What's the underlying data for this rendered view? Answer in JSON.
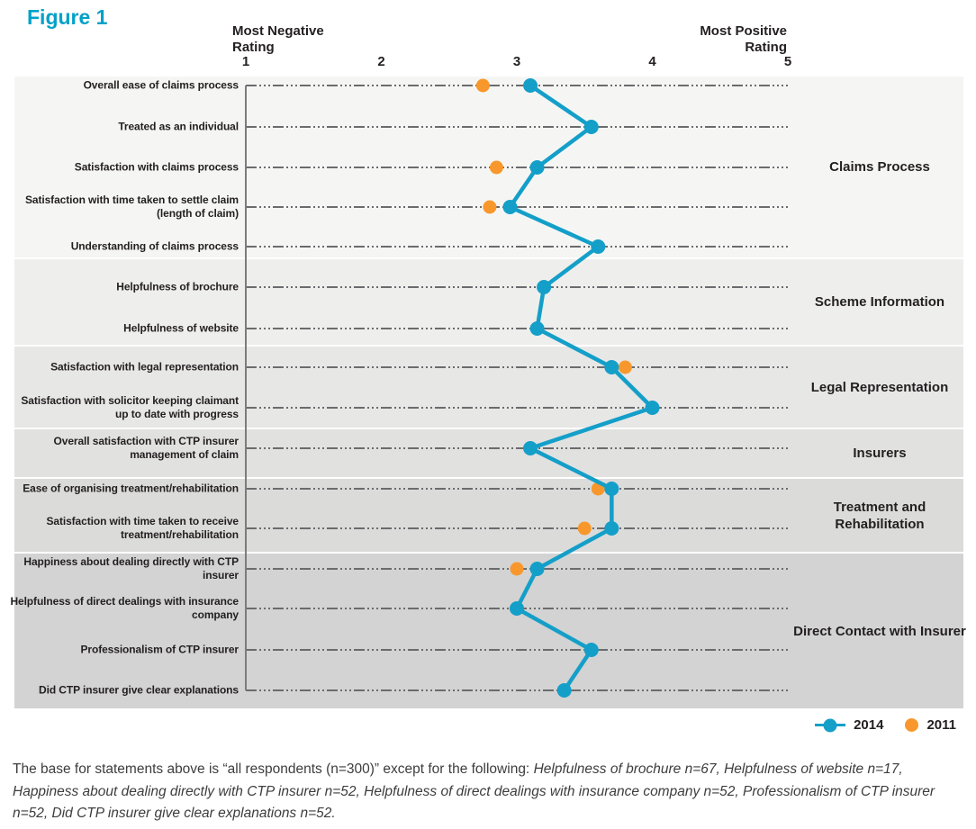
{
  "title": "Figure 1",
  "axis": {
    "left_header": "Most Negative\nRating",
    "right_header": "Most Positive\nRating",
    "ticks": [
      "1",
      "2",
      "3",
      "4",
      "5"
    ]
  },
  "legend": {
    "series": [
      {
        "name": "2014"
      },
      {
        "name": "2011"
      }
    ]
  },
  "colors": {
    "title": "#00a1c9",
    "series_2014": "#149fc9",
    "series_2011": "#f8982c",
    "row_line": "#6a6b6d",
    "axis_line": "#7b7c7e",
    "band_shades": [
      "#f5f6f4",
      "#eeeeec",
      "#e7e7e6",
      "#e1e1e0",
      "#dbdbda",
      "#d2d3d2"
    ]
  },
  "footnote": {
    "regular": "The base for statements above is “all respondents (n=300)” except for the following: ",
    "italic": "Helpfulness of brochure n=67, Helpfulness of website n=17, Happiness about dealing directly with CTP insurer n=52, Helpfulness of direct dealings with insurance company n=52, Professionalism of CTP insurer n=52, Did CTP insurer give clear explanations n=52."
  },
  "chart_data": {
    "type": "scatter",
    "x_range": [
      1,
      5
    ],
    "x_ticks": [
      1,
      2,
      3,
      4,
      5
    ],
    "series_names": [
      "2014",
      "2011"
    ],
    "xlabel_left": "Most Negative Rating",
    "xlabel_right": "Most Positive Rating",
    "groups": [
      {
        "label": "Claims Process",
        "rows": [
          {
            "label": "Overall ease of claims process",
            "v2014": 3.1,
            "v2011": 2.75
          },
          {
            "label": "Treated as an individual",
            "v2014": 3.55,
            "v2011": null
          },
          {
            "label": "Satisfaction with claims process",
            "v2014": 3.15,
            "v2011": 2.85
          },
          {
            "label": "Satisfaction with time taken to settle claim (length of claim)",
            "v2014": 2.95,
            "v2011": 2.8
          },
          {
            "label": "Understanding of claims process",
            "v2014": 3.6,
            "v2011": null
          }
        ]
      },
      {
        "label": "Scheme Information",
        "rows": [
          {
            "label": "Helpfulness of brochure",
            "v2014": 3.2,
            "v2011": null
          },
          {
            "label": "Helpfulness of website",
            "v2014": 3.15,
            "v2011": null
          }
        ]
      },
      {
        "label": "Legal Representation",
        "rows": [
          {
            "label": "Satisfaction with legal representation",
            "v2014": 3.7,
            "v2011": 3.8
          },
          {
            "label": "Satisfaction with solicitor keeping claimant up to date with progress",
            "v2014": 4.0,
            "v2011": null
          }
        ]
      },
      {
        "label": "Insurers",
        "rows": [
          {
            "label": "Overall satisfaction with CTP insurer management of claim",
            "v2014": 3.1,
            "v2011": null
          }
        ]
      },
      {
        "label": "Treatment and Rehabilitation",
        "rows": [
          {
            "label": "Ease of organising treatment/rehabilitation",
            "v2014": 3.7,
            "v2011": 3.6
          },
          {
            "label": "Satisfaction with time taken to receive treatment/rehabilitation",
            "v2014": 3.7,
            "v2011": 3.5
          }
        ]
      },
      {
        "label": "Direct Contact with Insurer",
        "rows": [
          {
            "label": "Happiness about dealing directly with CTP insurer",
            "v2014": 3.15,
            "v2011": 3.0
          },
          {
            "label": "Helpfulness of direct dealings with insurance company",
            "v2014": 3.0,
            "v2011": null
          },
          {
            "label": "Professionalism of CTP insurer",
            "v2014": 3.55,
            "v2011": null
          },
          {
            "label": "Did CTP insurer give clear explanations",
            "v2014": 3.35,
            "v2011": null
          }
        ]
      }
    ]
  }
}
